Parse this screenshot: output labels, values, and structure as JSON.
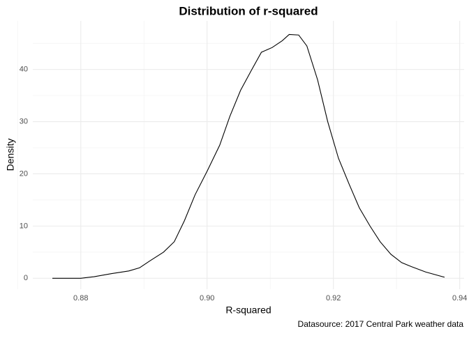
{
  "chart_data": {
    "type": "line",
    "title": "Distribution of r-squared",
    "x_label": "R-squared",
    "y_label": "Density",
    "caption": "Datasource: 2017 Central Park weather data",
    "x": [
      0.8755,
      0.88,
      0.8821,
      0.8849,
      0.8876,
      0.8893,
      0.8909,
      0.8931,
      0.8948,
      0.8964,
      0.8981,
      0.9,
      0.902,
      0.9036,
      0.9053,
      0.907,
      0.9086,
      0.9103,
      0.9119,
      0.913,
      0.9145,
      0.9158,
      0.9175,
      0.9191,
      0.9208,
      0.9225,
      0.9241,
      0.9258,
      0.9274,
      0.9291,
      0.9308,
      0.9324,
      0.9346,
      0.9376
    ],
    "series": [
      {
        "name": "density",
        "color": "#000000",
        "values": [
          0,
          0,
          0.3,
          0.9,
          1.4,
          2.0,
          3.3,
          5.0,
          7.0,
          11,
          16,
          20.5,
          25.5,
          31,
          36,
          39.8,
          43.3,
          44.2,
          45.5,
          46.7,
          46.6,
          44.5,
          38,
          30,
          23,
          18,
          13.5,
          10,
          7,
          4.6,
          3.0,
          2.2,
          1.2,
          0.2
        ]
      }
    ],
    "xlim": [
      0.8724,
      0.9407
    ],
    "ylim": [
      -2.1,
      49.3
    ],
    "xticks": [
      {
        "value": 0.88,
        "label": "0.88"
      },
      {
        "value": 0.9,
        "label": "0.90"
      },
      {
        "value": 0.92,
        "label": "0.92"
      },
      {
        "value": 0.94,
        "label": "0.94"
      }
    ],
    "yticks": [
      0,
      10,
      20,
      30,
      40
    ],
    "x_minor_grid": [
      0.87,
      0.89,
      0.91,
      0.93
    ],
    "y_minor_grid": [
      5,
      15,
      25,
      35,
      45
    ],
    "grid": true
  }
}
